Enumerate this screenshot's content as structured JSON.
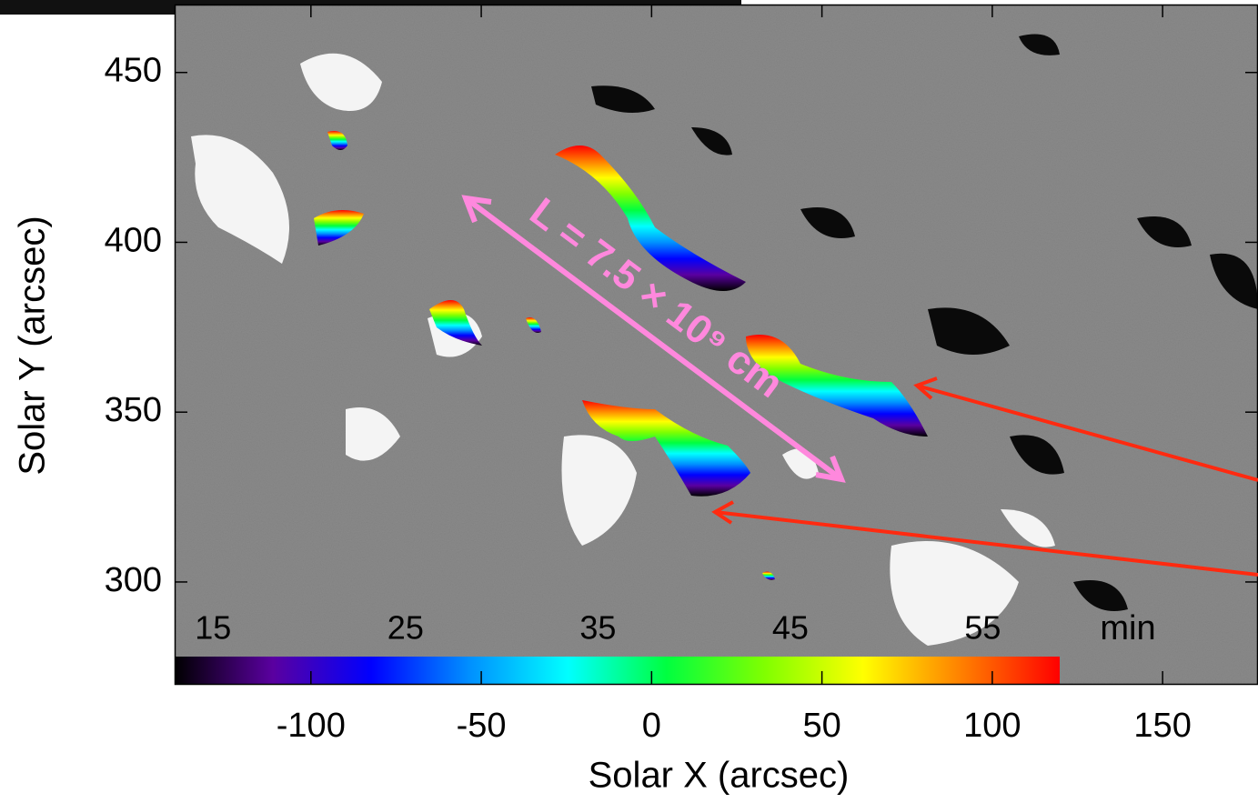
{
  "chart_data": {
    "type": "image",
    "xlabel": "Solar X (arcsec)",
    "ylabel": "Solar Y (arcsec)",
    "xlim": [
      -140,
      178
    ],
    "ylim": [
      270,
      470
    ],
    "xticks": [
      -100,
      -50,
      0,
      50,
      100,
      150
    ],
    "yticks": [
      300,
      350,
      400,
      450
    ],
    "colorbar": {
      "label": "min",
      "lim": [
        13,
        59
      ],
      "ticks": [
        15,
        25,
        35,
        45,
        55
      ],
      "colormap": [
        "#000000",
        "#5a00a0",
        "#0000ff",
        "#0090ff",
        "#00ffff",
        "#00ff40",
        "#80ff00",
        "#ffff00",
        "#ff8000",
        "#ff0000"
      ]
    },
    "annotation": "L = 7.5 × 10⁹ cm"
  }
}
